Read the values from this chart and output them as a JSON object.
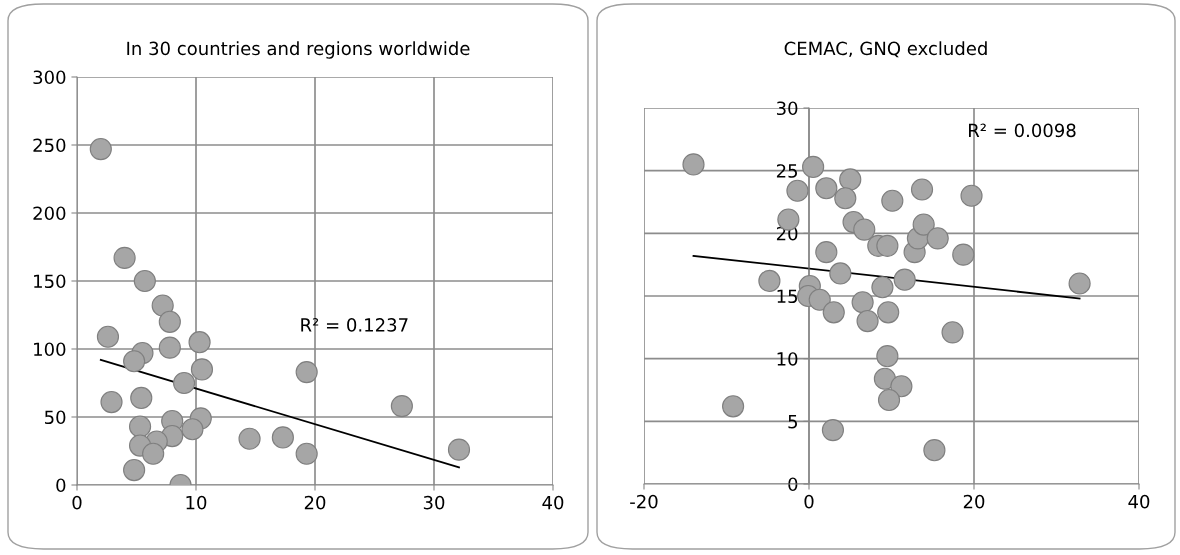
{
  "chart_data": [
    {
      "type": "scatter",
      "title": "In 30 countries and regions worldwide",
      "xlim": [
        0,
        40
      ],
      "xticks": [
        0,
        10,
        20,
        30,
        40
      ],
      "ylim": [
        0,
        300
      ],
      "yticks": [
        0,
        50,
        100,
        150,
        200,
        250,
        300
      ],
      "grid": true,
      "series": [
        {
          "marker": "circle",
          "color": "#a6a6a6",
          "x": [
            2,
            4,
            5.7,
            7.2,
            7.8,
            2.6,
            7.8,
            5.5,
            4.8,
            10.3,
            10.5,
            9,
            2.9,
            5.4,
            8,
            5.3,
            10.4,
            9.7,
            8,
            6.7,
            5.3,
            6.4,
            4.8,
            8.7,
            14.5,
            17.3,
            19.3,
            19.3,
            27.3,
            32.1
          ],
          "values": [
            247,
            167,
            150,
            132,
            120,
            109,
            101,
            97,
            91,
            105,
            85,
            75,
            61,
            64,
            47,
            43,
            49,
            41,
            36,
            32,
            29,
            23,
            11,
            0,
            34,
            35,
            83,
            23,
            58,
            26
          ]
        },
        {
          "type": "line",
          "marker": "none",
          "color": "#000000",
          "x": [
            2,
            32.1
          ],
          "values": [
            92,
            13
          ]
        }
      ],
      "annotations": [
        "R² = 0.1237"
      ]
    },
    {
      "type": "scatter",
      "title": "CEMAC, GNQ excluded",
      "xlim": [
        -20,
        40
      ],
      "xticks": [
        -20,
        0,
        20,
        40
      ],
      "ylim": [
        0,
        30
      ],
      "yticks": [
        0,
        5,
        10,
        15,
        20,
        25,
        30
      ],
      "grid": true,
      "series": [
        {
          "marker": "circle",
          "color": "#a6a6a6",
          "x": [
            -14.0,
            0.5,
            5.0,
            -1.4,
            2.1,
            4.4,
            10.1,
            13.7,
            -2.5,
            5.4,
            6.7,
            8.4,
            9.5,
            12.8,
            13.2,
            13.9,
            15.6,
            18.7,
            19.7,
            32.8,
            17.4,
            15.2,
            2.1,
            3.8,
            11.6,
            -4.8,
            0.1,
            -0.1,
            1.3,
            3.0,
            6.5,
            8.9,
            7.1,
            9.6,
            9.5,
            9.2,
            11.2,
            9.7,
            -9.2,
            2.9
          ],
          "values": [
            25.5,
            25.3,
            24.3,
            23.4,
            23.6,
            22.8,
            22.6,
            23.5,
            21.1,
            20.9,
            20.3,
            19.0,
            19.0,
            18.5,
            19.6,
            20.7,
            19.6,
            18.3,
            23.0,
            16.0,
            12.1,
            2.7,
            18.5,
            16.8,
            16.3,
            16.2,
            15.8,
            15.0,
            14.7,
            13.7,
            14.5,
            15.7,
            13.0,
            13.7,
            10.2,
            8.4,
            7.8,
            6.7,
            6.2,
            4.3
          ]
        },
        {
          "type": "line",
          "marker": "none",
          "color": "#000000",
          "x": [
            -14,
            32.8
          ],
          "values": [
            18.2,
            14.8
          ]
        }
      ],
      "annotations": [
        "R² = 0.0098"
      ]
    }
  ]
}
